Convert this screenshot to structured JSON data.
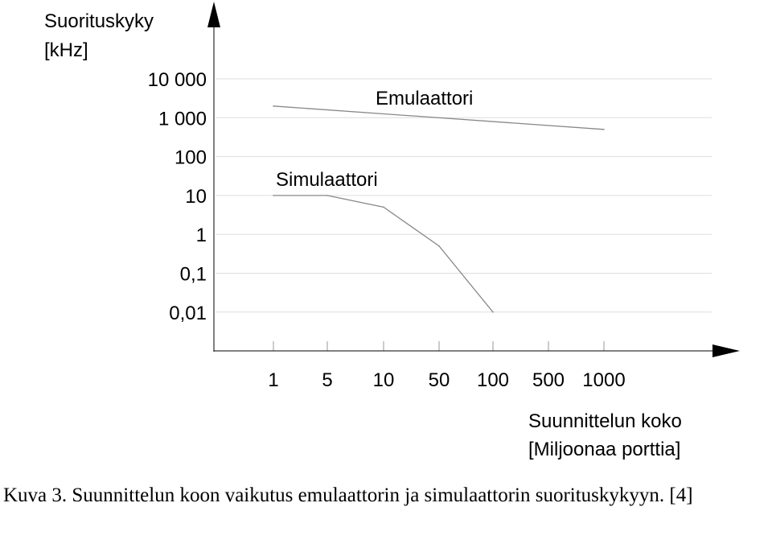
{
  "chart_data": {
    "type": "line",
    "ylabel_line1": "Suorituskyky",
    "ylabel_line2": "[kHz]",
    "xlabel_line1": "Suunnittelun koko",
    "xlabel_line2": "[Miljoonaa porttia]",
    "x_scale": "categorical",
    "categories": [
      "1",
      "5",
      "10",
      "50",
      "100",
      "500",
      "1000"
    ],
    "y_scale": "log",
    "y_ticks": [
      {
        "value": 10000,
        "label": "10 000"
      },
      {
        "value": 1000,
        "label": "1 000"
      },
      {
        "value": 100,
        "label": "100"
      },
      {
        "value": 10,
        "label": "10"
      },
      {
        "value": 1,
        "label": "1"
      },
      {
        "value": 0.1,
        "label": "0,1"
      },
      {
        "value": 0.01,
        "label": "0,01"
      }
    ],
    "ylim": [
      0.001,
      10000
    ],
    "grid": true,
    "series": [
      {
        "name": "Emulaattori",
        "points": [
          {
            "x": "1",
            "y": 2000
          },
          {
            "x": "1000",
            "y": 500
          }
        ]
      },
      {
        "name": "Simulaattori",
        "points": [
          {
            "x": "1",
            "y": 10
          },
          {
            "x": "5",
            "y": 10
          },
          {
            "x": "10",
            "y": 5
          },
          {
            "x": "50",
            "y": 0.5
          },
          {
            "x": "100",
            "y": 0.01
          }
        ]
      }
    ],
    "colors": {
      "line": "#888888",
      "grid": "#dddddd",
      "axis": "#000000"
    }
  },
  "caption": {
    "label": "Kuva 3.",
    "text": "Suunnittelun koon vaikutus emulaattorin ja simulaattorin suorituskykyyn. [4]"
  }
}
